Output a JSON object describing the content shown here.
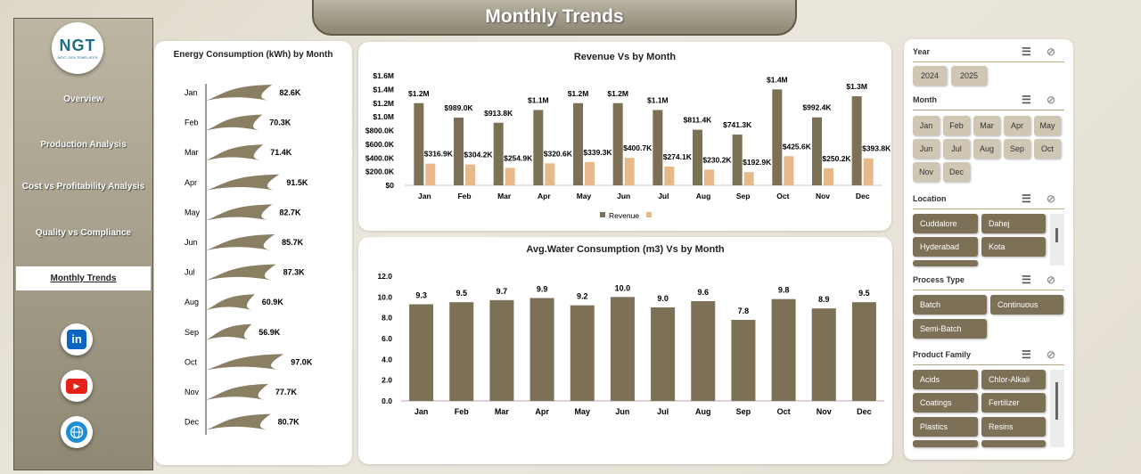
{
  "header": {
    "title": "Monthly Trends"
  },
  "logo": {
    "main": "NGT",
    "sub": "NEXT GEN TEMPLATES"
  },
  "nav": {
    "items": [
      {
        "label": "Overview"
      },
      {
        "label": "Production Analysis"
      },
      {
        "label": "Cost vs Profitability Analysis"
      },
      {
        "label": "Quality vs Compliance"
      },
      {
        "label": "Monthly Trends"
      }
    ],
    "active": "Monthly Trends"
  },
  "social": {
    "linkedin": "in",
    "youtube": "▶",
    "web": "🌐"
  },
  "colors": {
    "dark_bar": "#7c7057",
    "light_bar": "#e7b88a",
    "accent": "#b9a67c"
  },
  "energy": {
    "title": "Energy Consumption (kWh) by Month"
  },
  "revenue": {
    "title": "Revenue Vs  by Month",
    "legend_revenue": "Revenue",
    "legend_other": ""
  },
  "water": {
    "title": "Avg.Water Consumption (m3) Vs  by Month"
  },
  "chart_data": [
    {
      "type": "bar",
      "title": "Energy Consumption (kWh) by Month",
      "categories": [
        "Jan",
        "Feb",
        "Mar",
        "Apr",
        "May",
        "Jun",
        "Jul",
        "Aug",
        "Sep",
        "Oct",
        "Nov",
        "Dec"
      ],
      "values": [
        82.6,
        70.3,
        71.4,
        91.5,
        82.7,
        85.7,
        87.3,
        60.9,
        56.9,
        97.0,
        77.7,
        80.7
      ],
      "labels": [
        "82.6K",
        "70.3K",
        "71.4K",
        "91.5K",
        "82.7K",
        "85.7K",
        "87.3K",
        "60.9K",
        "56.9K",
        "97.0K",
        "77.7K",
        "80.7K"
      ],
      "unit": "K"
    },
    {
      "type": "bar",
      "title": "Revenue Vs  by Month",
      "categories": [
        "Jan",
        "Feb",
        "Mar",
        "Apr",
        "May",
        "Jun",
        "Jul",
        "Aug",
        "Sep",
        "Oct",
        "Nov",
        "Dec"
      ],
      "yticks": [
        "$0",
        "$200.0K",
        "$400.0K",
        "$600.0K",
        "$800.0K",
        "$1.0M",
        "$1.2M",
        "$1.4M",
        "$1.6M"
      ],
      "ylim": [
        0,
        1600
      ],
      "series": [
        {
          "name": "Revenue",
          "values": [
            1200,
            989.0,
            913.8,
            1100,
            1200,
            1200,
            1100,
            811.4,
            741.3,
            1400,
            992.4,
            1300
          ],
          "labels": [
            "$1.2M",
            "$989.0K",
            "$913.8K",
            "$1.1M",
            "$1.2M",
            "$1.2M",
            "$1.1M",
            "$811.4K",
            "$741.3K",
            "$1.4M",
            "$992.4K",
            "$1.3M"
          ]
        },
        {
          "values": [
            316.9,
            304.2,
            254.9,
            320.6,
            339.3,
            400.7,
            274.1,
            230.2,
            192.9,
            425.6,
            250.2,
            393.8
          ],
          "labels": [
            "$316.9K",
            "$304.2K",
            "$254.9K",
            "$320.6K",
            "$339.3K",
            "$400.7K",
            "$274.1K",
            "$230.2K",
            "$192.9K",
            "$425.6K",
            "$250.2K",
            "$393.8K"
          ]
        }
      ],
      "legend": "bottom"
    },
    {
      "type": "bar",
      "title": "Avg.Water Consumption (m3) Vs  by Month",
      "categories": [
        "Jan",
        "Feb",
        "Mar",
        "Apr",
        "May",
        "Jun",
        "Jul",
        "Aug",
        "Sep",
        "Oct",
        "Nov",
        "Dec"
      ],
      "values": [
        9.3,
        9.5,
        9.7,
        9.9,
        9.2,
        10.0,
        9.0,
        9.6,
        7.8,
        9.8,
        8.9,
        9.5
      ],
      "labels": [
        "9.3",
        "9.5",
        "9.7",
        "9.9",
        "9.2",
        "10.0",
        "9.0",
        "9.6",
        "7.8",
        "9.8",
        "8.9",
        "9.5"
      ],
      "yticks": [
        "0.0",
        "2.0",
        "4.0",
        "6.0",
        "8.0",
        "10.0",
        "12.0"
      ],
      "ylim": [
        0,
        12
      ]
    }
  ],
  "slicers": {
    "year": {
      "title": "Year",
      "items": [
        "2024",
        "2025"
      ]
    },
    "month": {
      "title": "Month",
      "items": [
        "Jan",
        "Feb",
        "Mar",
        "Apr",
        "May",
        "Jun",
        "Jul",
        "Aug",
        "Sep",
        "Oct",
        "Nov",
        "Dec"
      ]
    },
    "location": {
      "title": "Location",
      "items": [
        "Cuddalore",
        "Dahej",
        "Hyderabad",
        "Kota"
      ]
    },
    "process": {
      "title": "Process Type",
      "items": [
        "Batch",
        "Continuous",
        "Semi-Batch"
      ]
    },
    "family": {
      "title": "Product Family",
      "items": [
        "Acids",
        "Chlor-Alkali",
        "Coatings",
        "Fertilizer",
        "Plastics",
        "Resins"
      ]
    }
  },
  "slicer_icons": {
    "multiselect": "☰",
    "clear_filter": "⊘"
  }
}
